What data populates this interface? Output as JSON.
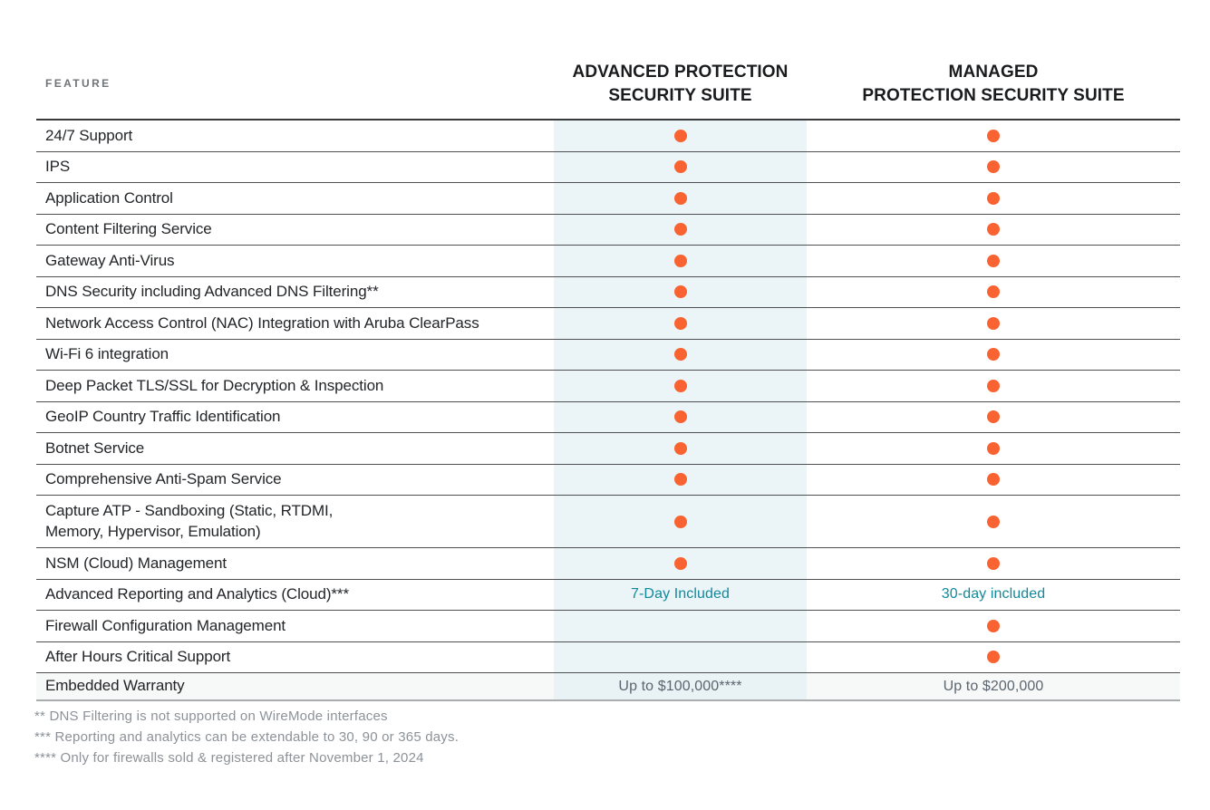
{
  "header": {
    "feature_label": "FEATURE",
    "columns": [
      {
        "id": "advanced",
        "label": "ADVANCED PROTECTION\nSECURITY SUITE"
      },
      {
        "id": "managed",
        "label": "MANAGED\nPROTECTION SECURITY SUITE"
      }
    ]
  },
  "table": {
    "rows": [
      {
        "feature": "24/7 Support",
        "cells": [
          {
            "kind": "dot"
          },
          {
            "kind": "dot"
          }
        ]
      },
      {
        "feature": "IPS",
        "cells": [
          {
            "kind": "dot"
          },
          {
            "kind": "dot"
          }
        ]
      },
      {
        "feature": "Application Control",
        "cells": [
          {
            "kind": "dot"
          },
          {
            "kind": "dot"
          }
        ]
      },
      {
        "feature": "Content Filtering Service",
        "cells": [
          {
            "kind": "dot"
          },
          {
            "kind": "dot"
          }
        ]
      },
      {
        "feature": "Gateway Anti-Virus",
        "cells": [
          {
            "kind": "dot"
          },
          {
            "kind": "dot"
          }
        ]
      },
      {
        "feature": "DNS Security including Advanced DNS Filtering**",
        "cells": [
          {
            "kind": "dot"
          },
          {
            "kind": "dot"
          }
        ]
      },
      {
        "feature": "Network Access Control (NAC) Integration with Aruba ClearPass",
        "cells": [
          {
            "kind": "dot"
          },
          {
            "kind": "dot"
          }
        ]
      },
      {
        "feature": "Wi-Fi 6 integration",
        "cells": [
          {
            "kind": "dot"
          },
          {
            "kind": "dot"
          }
        ]
      },
      {
        "feature": "Deep Packet TLS/SSL for Decryption & Inspection",
        "cells": [
          {
            "kind": "dot"
          },
          {
            "kind": "dot"
          }
        ]
      },
      {
        "feature": "GeoIP Country Traffic Identification",
        "cells": [
          {
            "kind": "dot"
          },
          {
            "kind": "dot"
          }
        ]
      },
      {
        "feature": "Botnet Service",
        "cells": [
          {
            "kind": "dot"
          },
          {
            "kind": "dot"
          }
        ]
      },
      {
        "feature": "Comprehensive Anti-Spam Service",
        "cells": [
          {
            "kind": "dot"
          },
          {
            "kind": "dot"
          }
        ]
      },
      {
        "feature": "Capture ATP -  Sandboxing (Static, RTDMI,\nMemory, Hypervisor, Emulation)",
        "tall": true,
        "cells": [
          {
            "kind": "dot"
          },
          {
            "kind": "dot"
          }
        ]
      },
      {
        "feature": "NSM (Cloud) Management",
        "cells": [
          {
            "kind": "dot"
          },
          {
            "kind": "dot"
          }
        ]
      },
      {
        "feature": "Advanced Reporting and Analytics (Cloud)***",
        "cells": [
          {
            "kind": "text",
            "value": "7-Day Included",
            "tone": "teal"
          },
          {
            "kind": "text",
            "value": "30-day included",
            "tone": "teal"
          }
        ]
      },
      {
        "feature": "Firewall Configuration Management",
        "cells": [
          {
            "kind": "empty"
          },
          {
            "kind": "dot"
          }
        ]
      },
      {
        "feature": "After Hours Critical Support",
        "cells": [
          {
            "kind": "empty"
          },
          {
            "kind": "dot"
          }
        ]
      },
      {
        "feature": "Embedded Warranty",
        "variant": "summary",
        "cells": [
          {
            "kind": "text",
            "value": "Up to $100,000****",
            "tone": "gray"
          },
          {
            "kind": "text",
            "value": "Up to $200,000",
            "tone": "gray"
          }
        ]
      }
    ]
  },
  "footnotes": [
    "** DNS Filtering is not supported on WireMode interfaces",
    "*** Reporting and analytics can be extendable to 30, 90 or 365 days.",
    "**** Only for firewalls sold & registered after November 1, 2024"
  ],
  "icons": {
    "included_dot": "orange-filled-circle"
  },
  "colors": {
    "accent_orange": "#F96332",
    "teal_text": "#12899B",
    "column_highlight": "#EBF5F8",
    "row_border": "#4E5052",
    "table_top_border": "#38393B",
    "table_bottom_border": "#A9ADB0",
    "feature_text": "#232528",
    "header_text": "#1A1B1D",
    "muted_label": "#6E7478",
    "footnote_text": "#8C9298",
    "value_gray": "#5C6670"
  }
}
